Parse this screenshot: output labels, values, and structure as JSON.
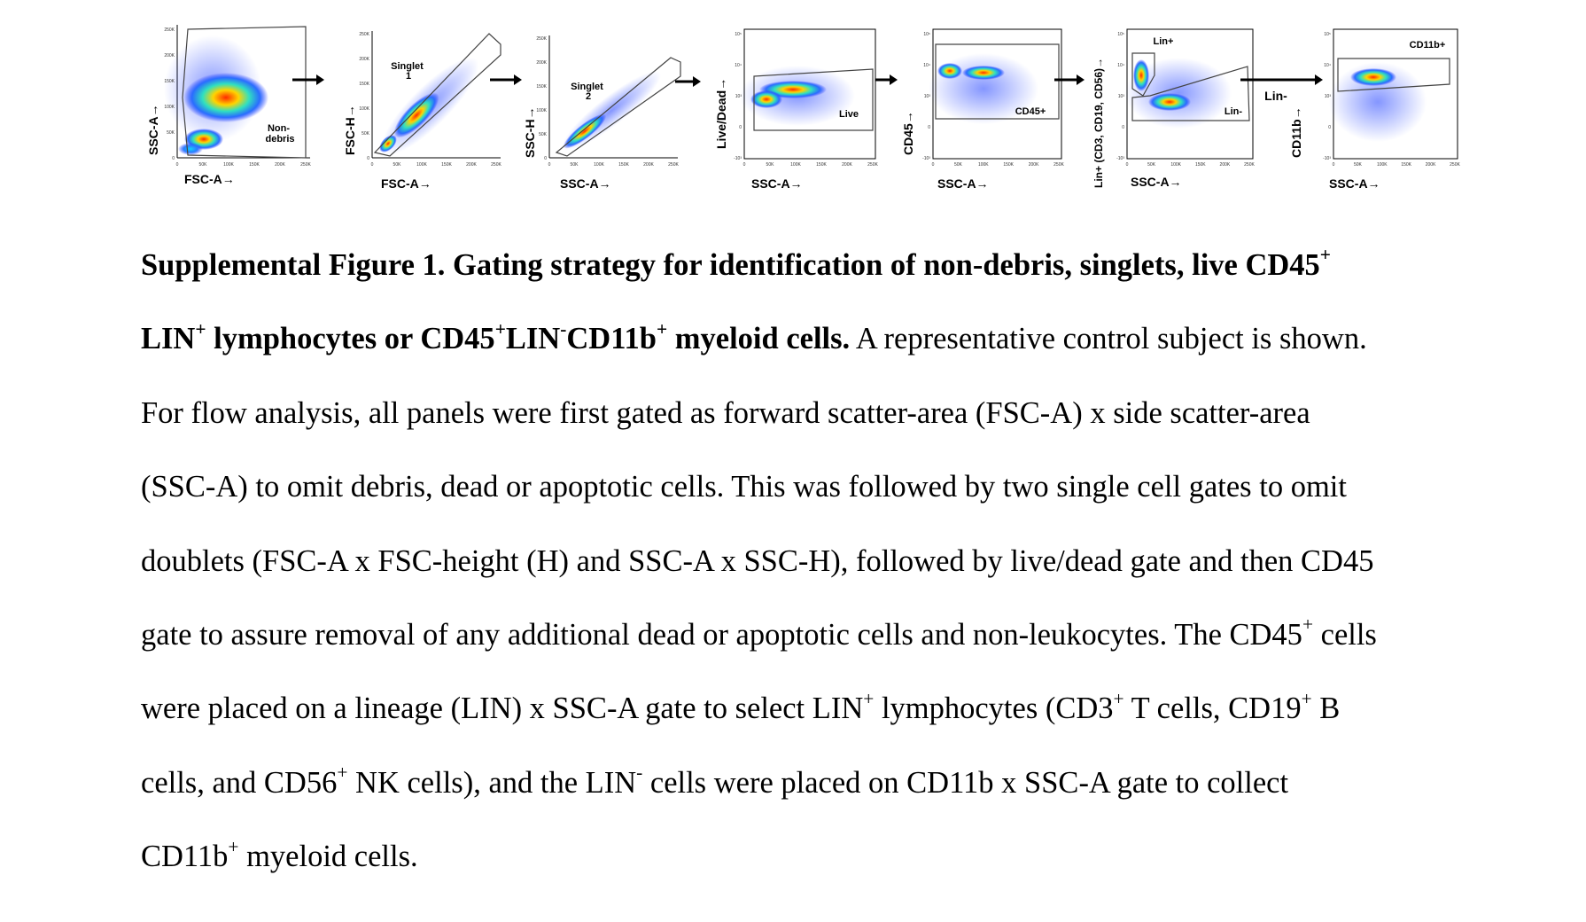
{
  "figure": {
    "panels": [
      {
        "id": "p1",
        "xlabel": "FSC-A→",
        "ylabel": "SSC-A→",
        "gate_label": "Non-\ndebris",
        "yticks": [
          "250K",
          "200K",
          "150K",
          "100K",
          "50K",
          "0"
        ],
        "xticks": [
          "0",
          "50K",
          "100K",
          "150K",
          "200K",
          "250K"
        ]
      },
      {
        "id": "p2",
        "xlabel": "FSC-A→",
        "ylabel": "FSC-H→",
        "gate_label": "Singlet\n1",
        "yticks": [
          "250K",
          "200K",
          "150K",
          "100K",
          "50K",
          "0"
        ],
        "xticks": [
          "0",
          "50K",
          "100K",
          "150K",
          "200K",
          "250K"
        ]
      },
      {
        "id": "p3",
        "xlabel": "SSC-A→",
        "ylabel": "SSC-H→",
        "gate_label": "Singlet\n2",
        "yticks": [
          "250K",
          "200K",
          "150K",
          "100K",
          "50K",
          "0"
        ],
        "xticks": [
          "0",
          "50K",
          "100K",
          "150K",
          "200K",
          "250K"
        ]
      },
      {
        "id": "p4",
        "xlabel": "SSC-A→",
        "ylabel": "Live/Dead→",
        "gate_label": "Live",
        "yticks": [
          "10⁵",
          "10⁴",
          "10³",
          "0",
          "-10³"
        ],
        "xticks": [
          "0",
          "50K",
          "100K",
          "150K",
          "200K",
          "250K"
        ]
      },
      {
        "id": "p5",
        "xlabel": "SSC-A→",
        "ylabel": "CD45→",
        "gate_label": "CD45+",
        "yticks": [
          "10⁵",
          "10⁴",
          "10³",
          "0",
          "-10³"
        ],
        "xticks": [
          "0",
          "50K",
          "100K",
          "150K",
          "200K",
          "250K"
        ]
      },
      {
        "id": "p6",
        "xlabel": "SSC-A→",
        "ylabel": "Lin+ (CD3, CD19, CD56)→",
        "gate_label": "Lin+",
        "gate_label_2": "Lin-",
        "yticks": [
          "10⁵",
          "10⁴",
          "10³",
          "0",
          "-10³"
        ],
        "xticks": [
          "0",
          "50K",
          "100K",
          "150K",
          "200K",
          "250K"
        ]
      },
      {
        "id": "p7",
        "xlabel": "SSC-A→",
        "ylabel": "CD11b→",
        "gate_label": "CD11b+",
        "yticks": [
          "10⁵",
          "10⁴",
          "10³",
          "0",
          "-10³"
        ],
        "xticks": [
          "0",
          "50K",
          "100K",
          "150K",
          "200K",
          "250K"
        ]
      }
    ],
    "between_label": "Lin-"
  },
  "caption": {
    "bold_1": "Supplemental Figure 1.  Gating strategy for identification of non-debris, singlets, live CD45",
    "sup_plus": "+",
    "sup_minus": "-",
    "bold_2a": "LIN",
    "bold_2b": " lymphocytes or CD45",
    "bold_2c": "LIN",
    "bold_2d": "CD11b",
    "bold_2e": " myeloid cells.",
    "text_2": " A representative control subject is shown.",
    "line_3": "For flow analysis, all panels were first gated as forward scatter-area (FSC-A) x side scatter-area",
    "line_4": "(SSC-A) to omit debris, dead or apoptotic cells. This was followed by two single cell gates to omit",
    "line_5": "doublets (FSC-A x FSC-height (H) and SSC-A x SSC-H), followed by live/dead gate and then CD45",
    "line_6a": "gate to assure removal of any additional dead or apoptotic cells and non-leukocytes.  The CD45",
    "line_6b": " cells",
    "line_7a": "were placed on a lineage (LIN) x SSC-A gate to select LIN",
    "line_7b": " lymphocytes (CD3",
    "line_7c": " T cells, CD19",
    "line_7d": " B",
    "line_8a": "cells, and CD56",
    "line_8b": " NK cells), and the LIN",
    "line_8c": " cells were placed on CD11b x SSC-A gate to collect",
    "line_9a": "CD11b",
    "line_9b": " myeloid cells."
  }
}
